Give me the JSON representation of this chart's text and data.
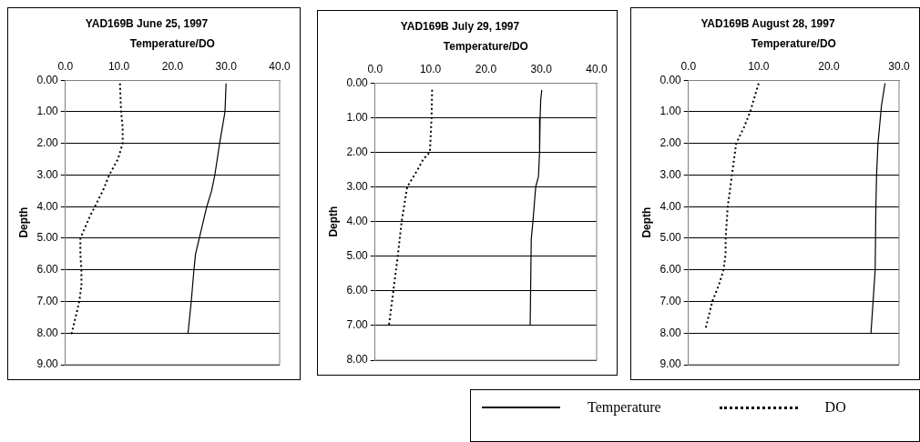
{
  "chart_data": [
    {
      "type": "line",
      "title": "YAD169B June 25, 1997",
      "xlabel": "Temperature/DO",
      "ylabel": "Depth",
      "xlim": [
        0,
        40
      ],
      "xticks": [
        {
          "value": 0,
          "label": "0.0"
        },
        {
          "value": 10,
          "label": "10.0"
        },
        {
          "value": 20,
          "label": "20.0"
        },
        {
          "value": 30,
          "label": "30.0"
        },
        {
          "value": 40,
          "label": "40.0"
        }
      ],
      "ylim": [
        9,
        0
      ],
      "yticks": [
        {
          "value": 0,
          "label": "0.00"
        },
        {
          "value": 1,
          "label": "1.00"
        },
        {
          "value": 2,
          "label": "2.00"
        },
        {
          "value": 3,
          "label": "3.00"
        },
        {
          "value": 4,
          "label": "4.00"
        },
        {
          "value": 5,
          "label": "5.00"
        },
        {
          "value": 6,
          "label": "6.00"
        },
        {
          "value": 7,
          "label": "7.00"
        },
        {
          "value": 8,
          "label": "8.00"
        },
        {
          "value": 9,
          "label": "9.00"
        }
      ],
      "grid": "y",
      "marker": "none",
      "series": [
        {
          "color": "#000000",
          "line_style": "solid",
          "x": [
            30.0,
            29.8,
            28.8,
            27.9,
            27.3,
            26.4,
            25.0,
            24.3,
            24.0,
            23.5,
            22.9
          ],
          "values": [
            0.1,
            1,
            2,
            3,
            3.5,
            4,
            5,
            5.5,
            6,
            7,
            8
          ]
        },
        {
          "color": "#000000",
          "line_style": "dotted",
          "x": [
            10.2,
            10.4,
            10.7,
            10.7,
            9.8,
            8.2,
            7.0,
            5.5,
            4.6,
            2.8,
            2.8,
            3.0,
            3.0,
            2.6,
            1.2,
            0.8
          ],
          "values": [
            0.1,
            1,
            1.5,
            2,
            2.5,
            3,
            3.5,
            4,
            4.3,
            5,
            5.5,
            6,
            6.5,
            7,
            8,
            8.05
          ]
        }
      ]
    },
    {
      "type": "line",
      "title": "YAD169B July 29, 1997",
      "xlabel": "Temperature/DO",
      "ylabel": "Depth",
      "xlim": [
        0,
        40
      ],
      "xticks": [
        {
          "value": 0,
          "label": "0.0"
        },
        {
          "value": 10,
          "label": "10.0"
        },
        {
          "value": 20,
          "label": "20.0"
        },
        {
          "value": 30,
          "label": "30.0"
        },
        {
          "value": 40,
          "label": "40.0"
        }
      ],
      "legend": "bottom right",
      "ylim": [
        8,
        0
      ],
      "yticks": [
        {
          "value": 0,
          "label": "0.00"
        },
        {
          "value": 1,
          "label": "1.00"
        },
        {
          "value": 2,
          "label": "2.00"
        },
        {
          "value": 3,
          "label": "3.00"
        },
        {
          "value": 4,
          "label": "4.00"
        },
        {
          "value": 5,
          "label": "5.00"
        },
        {
          "value": 6,
          "label": "6.00"
        },
        {
          "value": 7,
          "label": "7.00"
        },
        {
          "value": 8,
          "label": "8.00"
        }
      ],
      "grid": "y",
      "marker": "none",
      "series": [
        {
          "name": "Temperature",
          "color": "#000000",
          "line_style": "solid",
          "x": [
            30.1,
            29.9,
            29.8,
            29.7,
            29.5,
            29.0,
            28.5,
            28.2,
            28.0
          ],
          "values": [
            0.2,
            0.5,
            1,
            2,
            2.7,
            3,
            4,
            4.5,
            7
          ]
        },
        {
          "name": "DO",
          "color": "#000000",
          "line_style": "dotted",
          "x": [
            10.3,
            10.2,
            9.9,
            8.7,
            7.7,
            5.8,
            4.8,
            4.1,
            3.3,
            2.5
          ],
          "values": [
            0.2,
            1,
            2,
            2.2,
            2.5,
            3,
            4,
            5,
            6,
            7
          ]
        }
      ]
    },
    {
      "type": "line",
      "title": "YAD169B August 28, 1997",
      "xlabel": "Temperature/DO",
      "ylabel": "Depth",
      "xlim": [
        0,
        30
      ],
      "xticks": [
        {
          "value": 0,
          "label": "0.0"
        },
        {
          "value": 10,
          "label": "10.0"
        },
        {
          "value": 20,
          "label": "20.0"
        },
        {
          "value": 30,
          "label": "30.0"
        }
      ],
      "ylim": [
        9,
        0
      ],
      "yticks": [
        {
          "value": 0,
          "label": "0.00"
        },
        {
          "value": 1,
          "label": "1.00"
        },
        {
          "value": 2,
          "label": "2.00"
        },
        {
          "value": 3,
          "label": "3.00"
        },
        {
          "value": 4,
          "label": "4.00"
        },
        {
          "value": 5,
          "label": "5.00"
        },
        {
          "value": 6,
          "label": "6.00"
        },
        {
          "value": 7,
          "label": "7.00"
        },
        {
          "value": 8,
          "label": "8.00"
        },
        {
          "value": 9,
          "label": "9.00"
        }
      ],
      "grid": "y",
      "marker": "none",
      "series": [
        {
          "color": "#000000",
          "line_style": "solid",
          "x": [
            28.0,
            27.5,
            27.0,
            26.8,
            26.7,
            26.6,
            26.3,
            26.0
          ],
          "values": [
            0.1,
            0.8,
            2,
            3,
            4,
            6,
            7,
            8
          ]
        },
        {
          "color": "#000000",
          "line_style": "dotted",
          "x": [
            10.0,
            8.8,
            7.9,
            6.8,
            6.2,
            5.6,
            5.3,
            5.3,
            5.0,
            4.3,
            3.4,
            2.4
          ],
          "values": [
            0.1,
            1,
            1.5,
            2,
            3,
            4,
            5,
            5.5,
            6,
            6.5,
            7,
            7.9
          ]
        }
      ]
    }
  ]
}
